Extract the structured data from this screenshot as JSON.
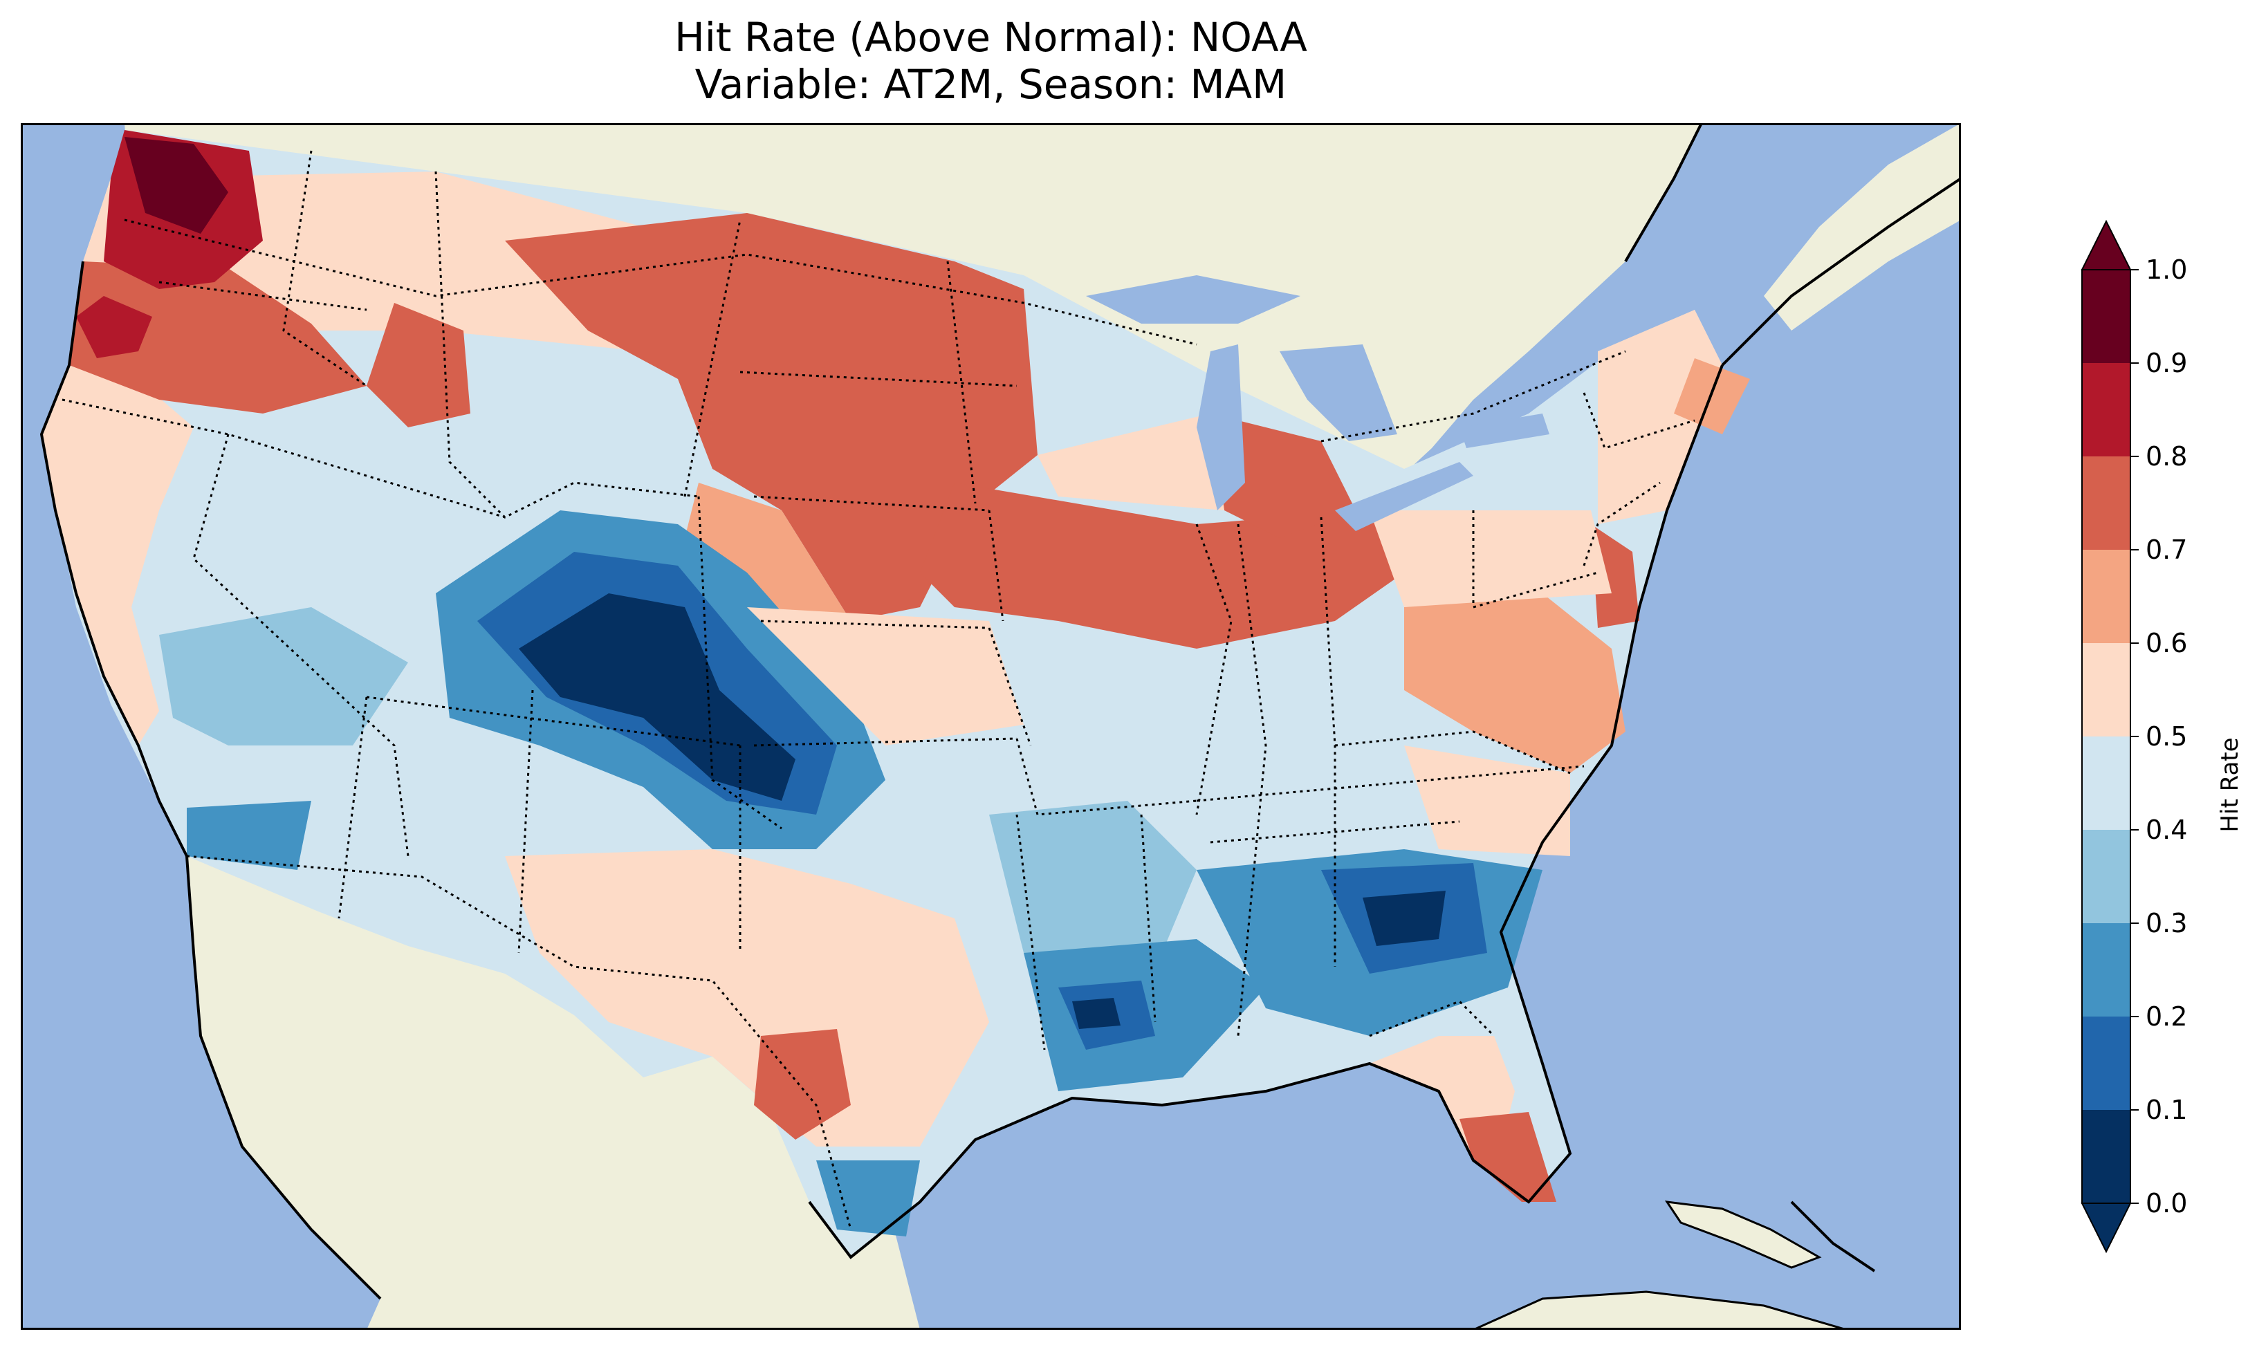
{
  "title_line1": "Hit Rate (Above Normal): NOAA",
  "title_line2": "Variable: AT2M, Season: MAM",
  "colorbar": {
    "label": "Hit Rate",
    "ticks": [
      "0.0",
      "0.1",
      "0.2",
      "0.3",
      "0.4",
      "0.5",
      "0.6",
      "0.7",
      "0.8",
      "0.9",
      "1.0"
    ],
    "colors": [
      "#053061",
      "#2166ac",
      "#4393c3",
      "#92c5de",
      "#d1e5f0",
      "#fddbc7",
      "#f4a582",
      "#d6604d",
      "#b2182b",
      "#67001f"
    ],
    "extend": "both"
  },
  "map": {
    "ocean_color": "#97b6e1",
    "land_color": "#efefdb",
    "regions": [
      {
        "name": "pacific-northwest",
        "value": 0.85
      },
      {
        "name": "northern-plains",
        "value": 0.72
      },
      {
        "name": "central-rockies",
        "value": 0.05
      },
      {
        "name": "southwest",
        "value": 0.4
      },
      {
        "name": "california-coast",
        "value": 0.6
      },
      {
        "name": "texas",
        "value": 0.55
      },
      {
        "name": "southeast",
        "value": 0.2
      },
      {
        "name": "florida",
        "value": 0.72
      },
      {
        "name": "great-lakes",
        "value": 0.7
      },
      {
        "name": "mid-atlantic",
        "value": 0.65
      },
      {
        "name": "northeast",
        "value": 0.45
      }
    ]
  }
}
